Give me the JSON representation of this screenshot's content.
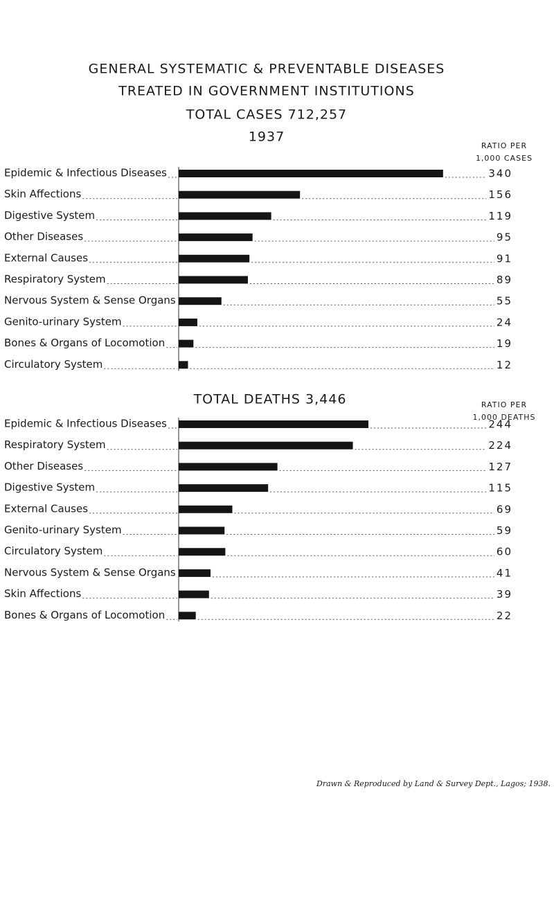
{
  "chart_data": [
    {
      "type": "bar",
      "title": [
        "GENERAL SYSTEMATIC & PREVENTABLE DISEASES",
        "TREATED IN GOVERNMENT INSTITUTIONS"
      ],
      "subtitle": [
        "TOTAL CASES 712,257",
        "1937"
      ],
      "value_header": [
        "RATIO PER",
        "1,000 CASES"
      ],
      "categories": [
        "Epidemic & Infectious Diseases",
        "Skin Affections",
        "Digestive System",
        "Other Diseases",
        "External Causes",
        "Respiratory System",
        "Nervous System & Sense Organs",
        "Genito-urinary System",
        "Bones & Organs of Locomotion",
        "Circulatory System"
      ],
      "values": [
        340,
        156,
        119,
        95,
        91,
        89,
        55,
        24,
        19,
        12
      ],
      "color": "#151515"
    },
    {
      "type": "bar",
      "title": "TOTAL DEATHS 3,446",
      "value_header": [
        "RATIO PER",
        "1,000 DEATHS"
      ],
      "categories": [
        "Epidemic & Infectious Diseases",
        "Respiratory System",
        "Other Diseases",
        "Digestive System",
        "External Causes",
        "Genito-urinary System",
        "Circulatory System",
        "Nervous System & Sense Organs",
        "Skin Affections",
        "Bones & Organs of Locomotion"
      ],
      "values": [
        244,
        224,
        127,
        115,
        69,
        59,
        60,
        41,
        39,
        22
      ],
      "color": "#151515"
    }
  ],
  "credit": "Drawn & Reproduced by Land & Survey Dept., Lagos; 1938."
}
